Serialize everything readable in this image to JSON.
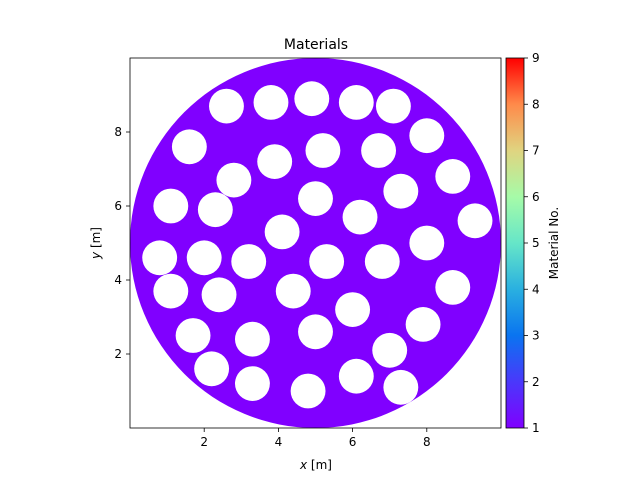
{
  "chart_data": {
    "type": "heatmap",
    "title": "Materials",
    "xlabel_var": "x",
    "xlabel_unit": " [m]",
    "ylabel_var": "y",
    "ylabel_unit": " [m]",
    "xlim": [
      0,
      10
    ],
    "ylim": [
      0,
      10
    ],
    "xticks": [
      2,
      4,
      6,
      8
    ],
    "yticks": [
      2,
      4,
      6,
      8
    ],
    "domain": {
      "shape": "circle",
      "center": [
        5,
        5
      ],
      "radius": 5,
      "material": 1
    },
    "holes": {
      "material": "none",
      "radius": 0.47,
      "centers": [
        [
          2.6,
          8.7
        ],
        [
          3.8,
          8.8
        ],
        [
          4.9,
          8.9
        ],
        [
          6.1,
          8.8
        ],
        [
          7.1,
          8.7
        ],
        [
          1.6,
          7.6
        ],
        [
          3.9,
          7.2
        ],
        [
          5.2,
          7.5
        ],
        [
          6.7,
          7.5
        ],
        [
          8.0,
          7.9
        ],
        [
          2.8,
          6.7
        ],
        [
          8.7,
          6.8
        ],
        [
          1.1,
          6.0
        ],
        [
          2.3,
          5.9
        ],
        [
          5.0,
          6.2
        ],
        [
          7.3,
          6.4
        ],
        [
          6.2,
          5.7
        ],
        [
          9.3,
          5.6
        ],
        [
          4.1,
          5.3
        ],
        [
          8.0,
          5.0
        ],
        [
          0.8,
          4.6
        ],
        [
          2.0,
          4.6
        ],
        [
          3.2,
          4.5
        ],
        [
          5.3,
          4.5
        ],
        [
          6.8,
          4.5
        ],
        [
          1.1,
          3.7
        ],
        [
          2.4,
          3.6
        ],
        [
          4.4,
          3.7
        ],
        [
          8.7,
          3.8
        ],
        [
          6.0,
          3.2
        ],
        [
          1.7,
          2.5
        ],
        [
          3.3,
          2.4
        ],
        [
          5.0,
          2.6
        ],
        [
          7.9,
          2.8
        ],
        [
          7.0,
          2.1
        ],
        [
          2.2,
          1.6
        ],
        [
          3.3,
          1.2
        ],
        [
          4.8,
          1.0
        ],
        [
          6.1,
          1.4
        ],
        [
          7.3,
          1.1
        ]
      ]
    },
    "colorbar": {
      "label": "Material No.",
      "range": [
        1,
        9
      ],
      "ticks": [
        1,
        2,
        3,
        4,
        5,
        6,
        7,
        8,
        9
      ],
      "colormap": "rainbow"
    },
    "colors": {
      "material_1": "#8000ff"
    }
  }
}
